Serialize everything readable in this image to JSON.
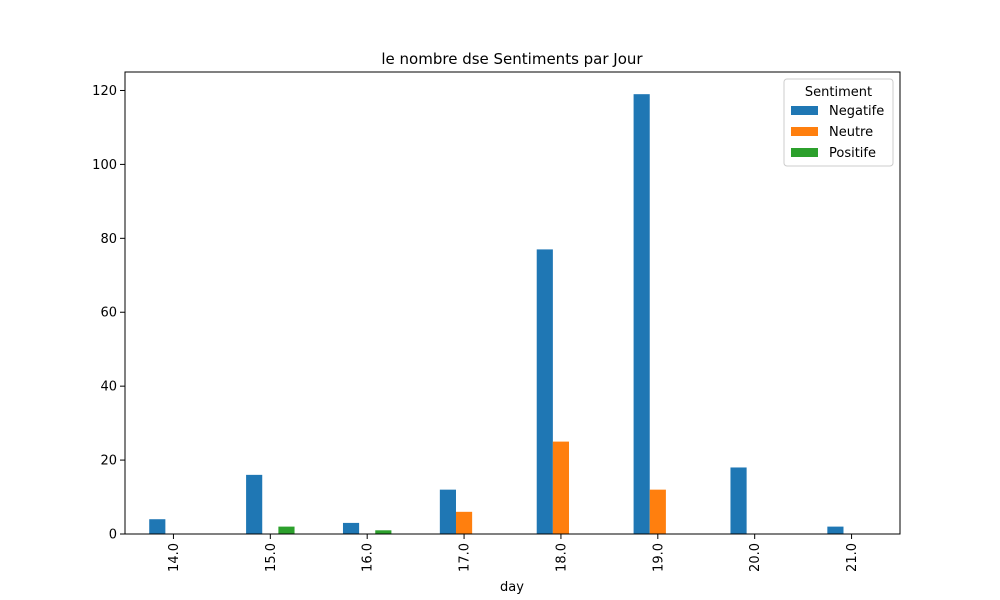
{
  "chart_data": {
    "type": "bar",
    "title": "le nombre dse Sentiments par Jour",
    "xlabel": "day",
    "ylabel": "",
    "categories": [
      "14.0",
      "15.0",
      "16.0",
      "17.0",
      "18.0",
      "19.0",
      "20.0",
      "21.0"
    ],
    "series": [
      {
        "name": "Negatife",
        "color": "#1f77b4",
        "values": [
          4,
          16,
          3,
          12,
          77,
          119,
          18,
          2
        ]
      },
      {
        "name": "Neutre",
        "color": "#ff7f0e",
        "values": [
          0,
          0,
          0,
          6,
          25,
          12,
          0,
          0
        ]
      },
      {
        "name": "Positife",
        "color": "#2ca02c",
        "values": [
          0,
          2,
          1,
          0,
          0,
          0,
          0,
          0
        ]
      }
    ],
    "ylim": [
      0,
      125
    ],
    "yticks": [
      0,
      20,
      40,
      60,
      80,
      100,
      120
    ],
    "legend": {
      "title": "Sentiment",
      "placement": "top-right"
    },
    "grid": false
  }
}
